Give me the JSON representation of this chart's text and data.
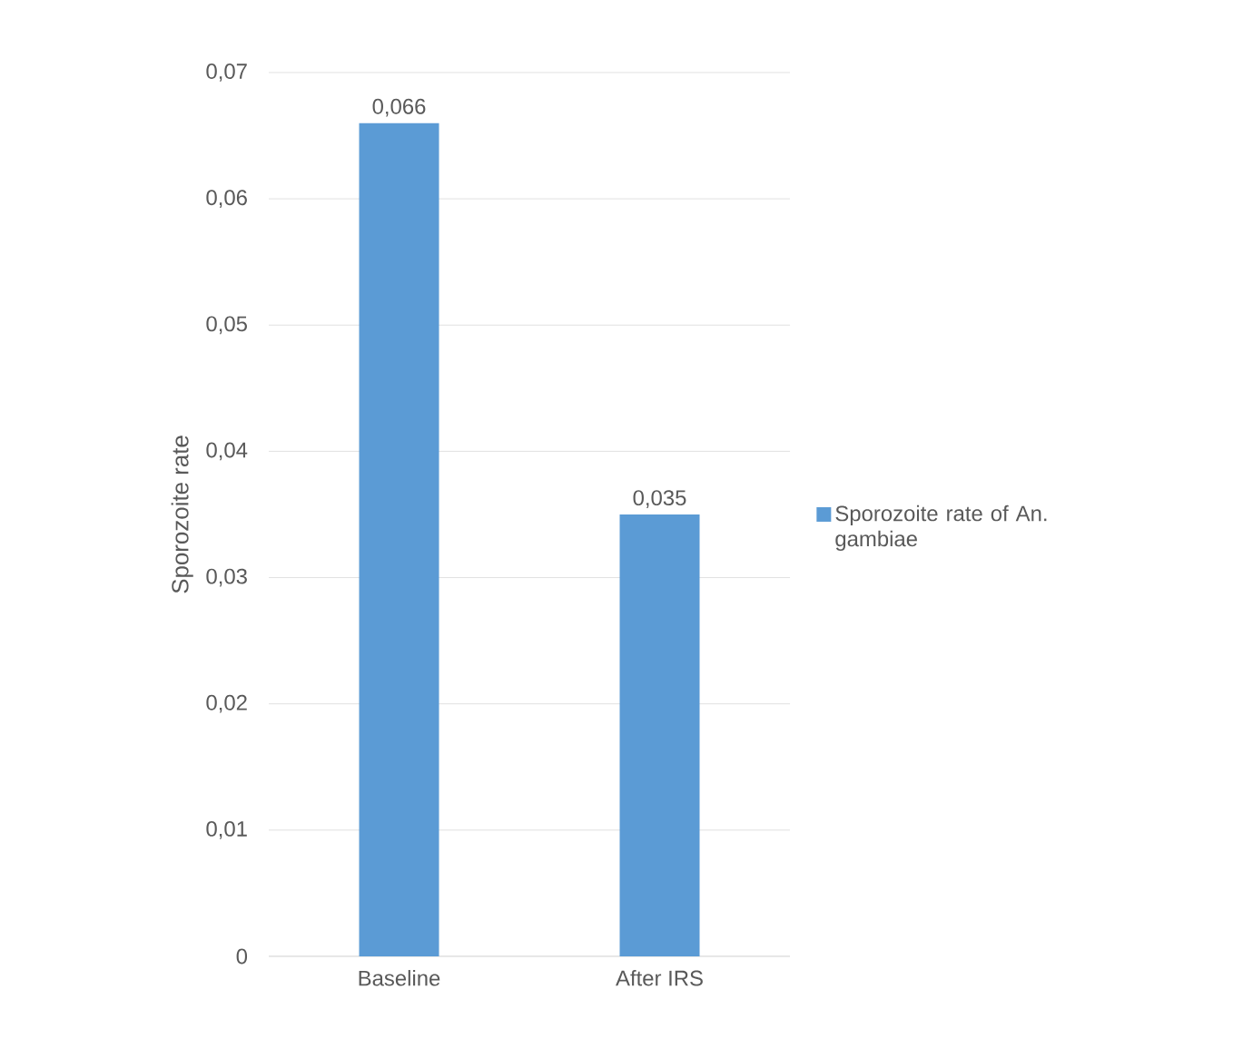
{
  "chart_data": {
    "type": "bar",
    "ylabel": "Sporozoite rate",
    "categories": [
      "Baseline",
      "After IRS"
    ],
    "series": [
      {
        "name": "Sporozoite rate of An. gambiae",
        "color": "#5b9bd5",
        "values": [
          0.066,
          0.035
        ],
        "value_labels": [
          "0,066",
          "0,035"
        ]
      }
    ],
    "ylim": [
      0,
      0.07
    ],
    "yticks": [
      {
        "value": 0,
        "label": "0"
      },
      {
        "value": 0.01,
        "label": "0,01"
      },
      {
        "value": 0.02,
        "label": "0,02"
      },
      {
        "value": 0.03,
        "label": "0,03"
      },
      {
        "value": 0.04,
        "label": "0,04"
      },
      {
        "value": 0.05,
        "label": "0,05"
      },
      {
        "value": 0.06,
        "label": "0,06"
      },
      {
        "value": 0.07,
        "label": "0,07"
      }
    ],
    "grid": "y",
    "legend": "right"
  }
}
